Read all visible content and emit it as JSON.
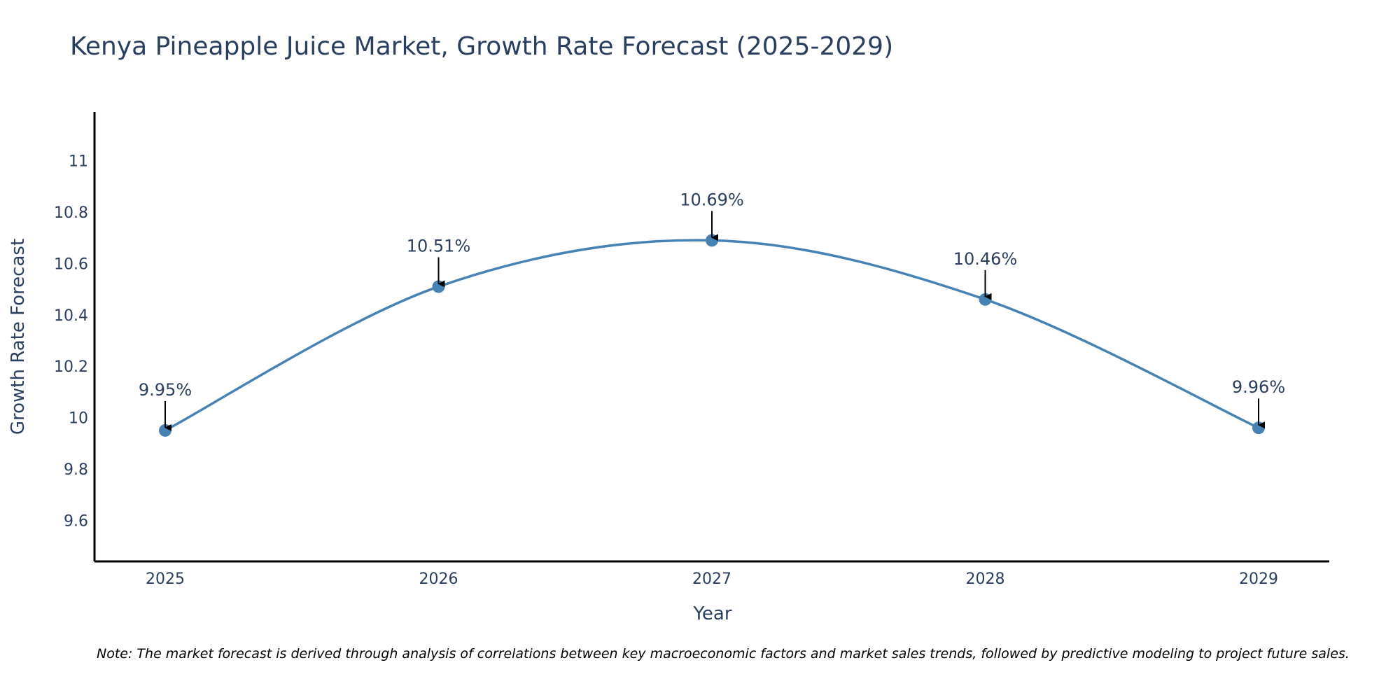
{
  "chart_data": {
    "type": "line",
    "title": "Kenya Pineapple Juice Market, Growth Rate Forecast (2025-2029)",
    "xlabel": "Year",
    "ylabel": "Growth Rate Forecast",
    "categories": [
      "2025",
      "2026",
      "2027",
      "2028",
      "2029"
    ],
    "series": [
      {
        "name": "Growth Rate Forecast",
        "values": [
          9.95,
          10.51,
          10.69,
          10.46,
          9.96
        ],
        "labels": [
          "9.95%",
          "10.51%",
          "10.69%",
          "10.46%",
          "9.96%"
        ]
      }
    ],
    "yticks": [
      "9.6",
      "9.8",
      "10",
      "10.2",
      "10.4",
      "10.6",
      "10.8",
      "11"
    ],
    "ytick_values": [
      9.6,
      9.8,
      10,
      10.2,
      10.4,
      10.6,
      10.8,
      11
    ],
    "ylim": [
      9.44,
      11.19
    ],
    "grid": false,
    "line_shape": "spline",
    "colors": {
      "line": "#4682b4",
      "axis": "#000000",
      "text": "#2a3f5f",
      "arrow": "#000000"
    }
  },
  "note": "Note: The market forecast is derived through analysis of correlations between key macroeconomic factors and market sales trends, followed by predictive modeling to project future sales."
}
